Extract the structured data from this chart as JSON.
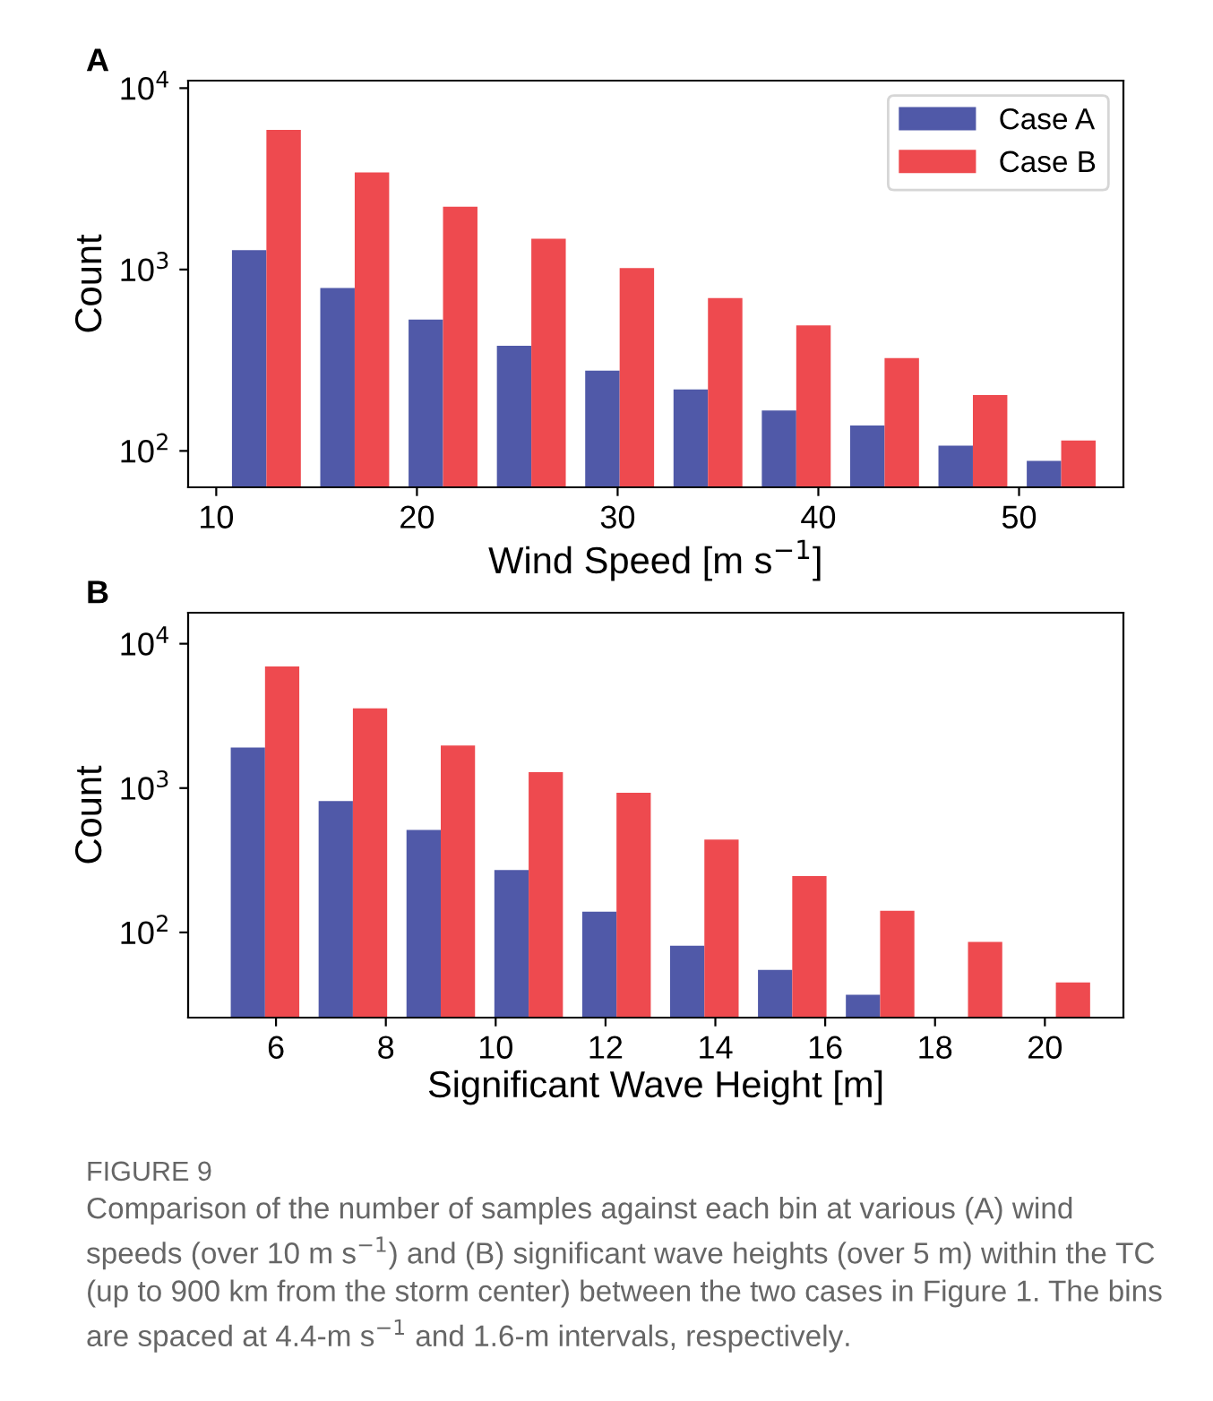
{
  "chart_data": [
    {
      "type": "bar",
      "annotations": [
        "A"
      ],
      "xlabel": "Wind Speed [m s$^{−1}$]",
      "ylabel": "Count",
      "log": "y",
      "legend": "top right",
      "grid": false,
      "x": [
        12.5,
        16.9,
        21.3,
        25.7,
        30.1,
        34.5,
        38.9,
        43.3,
        47.7,
        52.1
      ],
      "series": [
        {
          "name": "Case A",
          "color": "#5059a8",
          "values": [
            1280,
            790,
            530,
            380,
            277,
            218,
            167,
            138,
            107,
            88
          ]
        },
        {
          "name": "Case B",
          "color": "#ee4a4f",
          "values": [
            5880,
            3430,
            2220,
            1480,
            1020,
            695,
            492,
            325,
            203,
            114
          ]
        }
      ],
      "xlim": [
        8.6,
        55.2
      ],
      "xticks": [
        10,
        20,
        30,
        40,
        50
      ],
      "ylim": [
        63,
        11000
      ],
      "yticks": [
        {
          "value": 100,
          "label": "10$^{2}$"
        },
        {
          "value": 1000,
          "label": "10$^{3}$"
        },
        {
          "value": 10000,
          "label": "10$^{4}$"
        }
      ]
    },
    {
      "type": "bar",
      "annotations": [
        "B",
        "FIGURE 9",
        "Comparison of the number of samples against each bin at various (A) wind speeds (over 10 m s$^{−1}$) and (B) significant wave heights (over 5 m) within the TC (up to 900 km from the storm center) between the two cases in Figure 1. The bins are spaced at 4.4-m s$^{−1}$ and 1.6-m intervals, respectively."
      ],
      "xlabel": "Significant Wave Height [m]",
      "ylabel": "Count",
      "log": "y",
      "grid": false,
      "x": [
        5.8,
        7.4,
        9.0,
        10.6,
        12.2,
        13.8,
        15.4,
        17.0,
        18.6,
        20.2
      ],
      "series": [
        {
          "color": "#5059a8",
          "values": [
            1910,
            813,
            513,
            271,
            139,
            81,
            55,
            37,
            null,
            null
          ]
        },
        {
          "color": "#ee4a4f",
          "values": [
            6970,
            3570,
            1970,
            1290,
            927,
            440,
            246,
            141,
            86,
            45
          ]
        }
      ],
      "xlim": [
        4.4,
        21.43
      ],
      "xticks": [
        6,
        8,
        10,
        12,
        14,
        16,
        18,
        20
      ],
      "ylim": [
        25.7,
        16400
      ],
      "yticks": [
        {
          "value": 100,
          "label": "10$^{2}$"
        },
        {
          "value": 1000,
          "label": "10$^{3}$"
        },
        {
          "value": 10000,
          "label": "10$^{4}$"
        }
      ]
    }
  ]
}
